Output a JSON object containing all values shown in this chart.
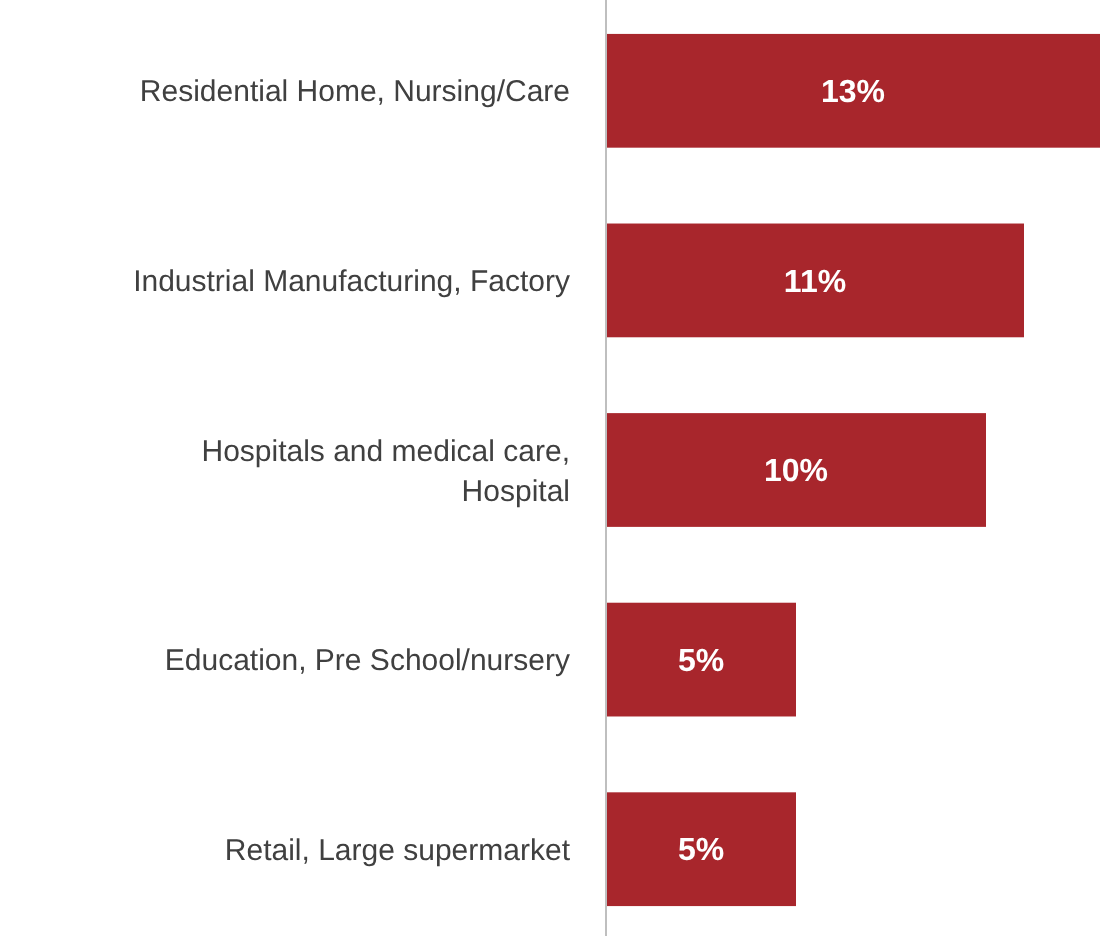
{
  "chart_data": {
    "type": "bar",
    "orientation": "horizontal",
    "categories": [
      "Residential Home, Nursing/Care",
      "Industrial Manufacturing, Factory",
      "Hospitals and medical care, Hospital",
      "Education, Pre School/nursery",
      "Retail, Large supermarket"
    ],
    "values": [
      13,
      11,
      10,
      5,
      5
    ],
    "value_labels": [
      "13%",
      "11%",
      "10%",
      "5%",
      "5%"
    ],
    "color": "#a8262c",
    "xlim": [
      0,
      13
    ]
  }
}
